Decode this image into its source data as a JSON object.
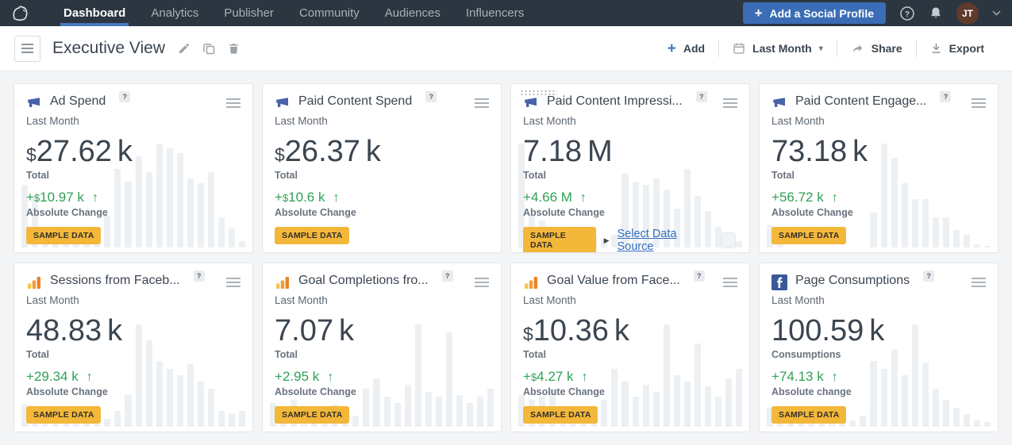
{
  "colors": {
    "nav_bg": "#2c3640",
    "accent_blue": "#3a6db6",
    "active_tab_underline": "#4678bd",
    "link_blue": "#2e6fc0",
    "positive_green": "#2fa156",
    "sample_badge_amber": "#f3b73a",
    "spark_bar": "#edf0f3",
    "text_dark": "#3b4550",
    "avatar_brown": "#5f3b2c",
    "megaphone_icon": "#4a63a8",
    "facebook_blue": "#3b5998"
  },
  "nav": {
    "logo_icon": "hootsuite-owl-icon",
    "tabs": [
      {
        "label": "Dashboard",
        "active": true
      },
      {
        "label": "Analytics",
        "active": false
      },
      {
        "label": "Publisher",
        "active": false
      },
      {
        "label": "Community",
        "active": false
      },
      {
        "label": "Audiences",
        "active": false
      },
      {
        "label": "Influencers",
        "active": false
      }
    ],
    "add_profile_plus": "+",
    "add_profile_label": "Add a Social Profile",
    "help_icon": "question-circle-icon",
    "bell_icon": "bell-icon",
    "avatar_initials": "JT",
    "caret": "▾"
  },
  "toolbar": {
    "title": "Executive View",
    "add_plus": "+",
    "add_label": "Add",
    "range_label": "Last Month",
    "range_caret": "▾",
    "share_label": "Share",
    "export_label": "Export"
  },
  "cards": [
    {
      "icon": "megaphone",
      "icon_name": "megaphone-icon",
      "title": "Ad Spend",
      "help": "?",
      "period": "Last Month",
      "currency": "$",
      "value": "27.62",
      "unit": "k",
      "value_label": "Total",
      "change_plus": "+",
      "change_currency": "$",
      "change_number": "10.97 k",
      "change_arrow": "↑",
      "change_label": "Absolute Change",
      "badge": "SAMPLE DATA",
      "bars": [
        40,
        33,
        4,
        3,
        3,
        4,
        5,
        3,
        20,
        50,
        42,
        58,
        48,
        66,
        63,
        60,
        44,
        41,
        48,
        19,
        12,
        4
      ]
    },
    {
      "icon": "megaphone",
      "icon_name": "megaphone-icon",
      "title": "Paid Content Spend",
      "help": "?",
      "period": "Last Month",
      "currency": "$",
      "value": "26.37",
      "unit": "k",
      "value_label": "Total",
      "change_plus": "+",
      "change_currency": "$",
      "change_number": "10.6 k",
      "change_arrow": "↑",
      "change_label": "Absolute Change",
      "badge": "SAMPLE DATA",
      "bars": []
    },
    {
      "icon": "megaphone",
      "icon_name": "megaphone-icon",
      "title": "Paid Content Impressi...",
      "help": "?",
      "period": "Last Month",
      "currency": "",
      "value": "7.18",
      "unit": "M",
      "value_label": "Total",
      "change_plus": "+",
      "change_currency": "",
      "change_number": "4.66 M",
      "change_arrow": "↑",
      "change_label": "Absolute Change",
      "badge": "SAMPLE DATA",
      "drag_dots": true,
      "link_caret": "▶",
      "link_label": "Select Data Source",
      "bars": [
        66,
        20,
        17,
        5,
        4,
        5,
        4,
        7,
        5,
        8,
        47,
        42,
        40,
        44,
        37,
        25,
        50,
        33,
        23,
        13,
        7,
        4
      ]
    },
    {
      "icon": "megaphone",
      "icon_name": "megaphone-icon",
      "title": "Paid Content Engage...",
      "help": "?",
      "period": "Last Month",
      "currency": "",
      "value": "73.18",
      "unit": "k",
      "value_label": "Total",
      "change_plus": "+",
      "change_currency": "",
      "change_number": "56.72 k",
      "change_arrow": "↑",
      "change_label": "Absolute Change",
      "badge": "SAMPLE DATA",
      "bars": [
        14,
        10,
        0,
        0,
        0,
        0,
        0,
        0,
        0,
        0,
        22,
        66,
        57,
        41,
        31,
        31,
        19,
        19,
        11,
        8,
        2,
        1
      ]
    },
    {
      "icon": "analytics",
      "icon_name": "analytics-bars-icon",
      "title": "Sessions from Faceb...",
      "help": "?",
      "period": "Last Month",
      "currency": "",
      "value": "48.83",
      "unit": "k",
      "value_label": "Total",
      "change_plus": "+",
      "change_currency": "",
      "change_number": "29.34 k",
      "change_arrow": "↑",
      "change_label": "Absolute Change",
      "badge": "SAMPLE DATA",
      "bars": [
        14,
        10,
        8,
        5,
        4,
        5,
        4,
        7,
        5,
        10,
        20,
        65,
        55,
        42,
        37,
        33,
        40,
        29,
        24,
        10,
        8,
        10
      ]
    },
    {
      "icon": "analytics",
      "icon_name": "analytics-bars-icon",
      "title": "Goal Completions fro...",
      "help": "?",
      "period": "Last Month",
      "currency": "",
      "value": "7.07",
      "unit": "k",
      "value_label": "Total",
      "change_plus": "+",
      "change_currency": "",
      "change_number": "2.95 k",
      "change_arrow": "↑",
      "change_label": "Absolute Change",
      "badge": "SAMPLE DATA",
      "bars": [
        15,
        12,
        17,
        10,
        5,
        4,
        14,
        10,
        7,
        24,
        31,
        19,
        15,
        27,
        65,
        22,
        19,
        60,
        20,
        15,
        19,
        24
      ]
    },
    {
      "icon": "analytics",
      "icon_name": "analytics-bars-icon",
      "title": "Goal Value from Face...",
      "help": "?",
      "period": "Last Month",
      "currency": "$",
      "value": "10.36",
      "unit": "k",
      "value_label": "Total",
      "change_plus": "+",
      "change_currency": "$",
      "change_number": "4.27 k",
      "change_arrow": "↑",
      "change_label": "Absolute Change",
      "badge": "SAMPLE DATA",
      "bars": [
        20,
        17,
        19,
        24,
        12,
        10,
        8,
        7,
        17,
        37,
        29,
        19,
        27,
        22,
        65,
        33,
        29,
        53,
        26,
        19,
        31,
        37
      ]
    },
    {
      "icon": "facebook",
      "icon_name": "facebook-icon",
      "title": "Page Consumptions",
      "help": "?",
      "period": "Last Month",
      "currency": "",
      "value": "100.59",
      "unit": "k",
      "value_label": "Consumptions",
      "change_plus": "+",
      "change_currency": "",
      "change_number": "74.13 k",
      "change_arrow": "↑",
      "change_label": "Absolute change",
      "badge": "SAMPLE DATA",
      "bars": [
        12,
        8,
        3,
        3,
        4,
        3,
        3,
        5,
        4,
        7,
        42,
        37,
        49,
        33,
        65,
        41,
        24,
        17,
        12,
        8,
        4,
        3
      ]
    }
  ]
}
